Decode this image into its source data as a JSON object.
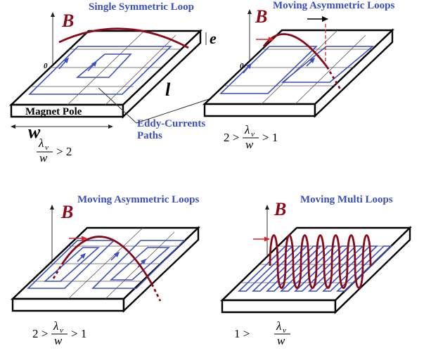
{
  "panels": {
    "p1": {
      "title": "Single Symmetric Loop",
      "b_label": "B",
      "zero": "0",
      "e_label": "e",
      "l_label": "l",
      "w_label": "w",
      "pole_label": "Magnet Pole",
      "eddy_label_1": "Eddy-Currents",
      "eddy_label_2": "Paths",
      "cond_rhs": "> 2"
    },
    "p2": {
      "title": "Moving Asymmetric Loops",
      "b_label": "B",
      "zero": "0",
      "cond_lhs": "2 >",
      "cond_rhs": "> 1"
    },
    "p3": {
      "title": "Moving Asymmetric Loops",
      "b_label": "B",
      "cond_lhs": "2 >",
      "cond_rhs": "> 1"
    },
    "p4": {
      "title": "Moving Multi  Loops",
      "b_label": "B",
      "cond_lhs": "1 >"
    }
  },
  "ratio": {
    "num": "λ",
    "num_sub": "v",
    "den": "w"
  },
  "colors": {
    "title": "#3a4fc0",
    "flux": "#8b0a1a",
    "loop": "#3a4fc0",
    "arrow": "#e0202a"
  }
}
